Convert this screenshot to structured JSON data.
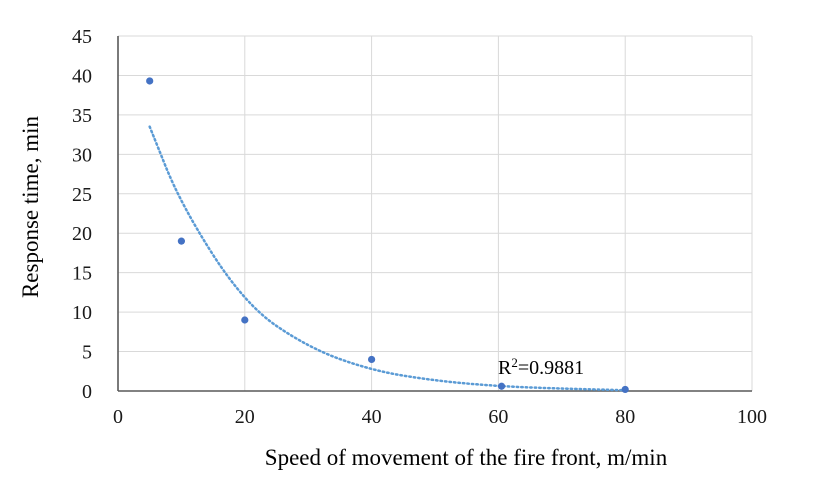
{
  "chart_data": {
    "type": "scatter",
    "xlabel": "Speed of movement of the fire front, m/min",
    "ylabel": "Response time, min",
    "xlim": [
      0,
      100
    ],
    "ylim": [
      0,
      45
    ],
    "x_ticks": [
      0,
      20,
      40,
      60,
      80,
      100
    ],
    "y_ticks": [
      0,
      5,
      10,
      15,
      20,
      25,
      30,
      35,
      40,
      45
    ],
    "grid": true,
    "points": [
      {
        "x": 5,
        "y": 39.3
      },
      {
        "x": 10,
        "y": 19.0
      },
      {
        "x": 20,
        "y": 9.0
      },
      {
        "x": 40,
        "y": 4.0
      },
      {
        "x": 60.5,
        "y": 0.6
      },
      {
        "x": 80,
        "y": 0.2
      }
    ],
    "trendline": {
      "type": "exponential",
      "style": "dotted",
      "x_range": [
        5,
        80
      ],
      "points": [
        {
          "x": 5,
          "y": 33.5
        },
        {
          "x": 10,
          "y": 23.5
        },
        {
          "x": 20,
          "y": 11.0
        },
        {
          "x": 30,
          "y": 5.5
        },
        {
          "x": 40,
          "y": 2.6
        },
        {
          "x": 50,
          "y": 1.3
        },
        {
          "x": 60,
          "y": 0.6
        },
        {
          "x": 70,
          "y": 0.3
        },
        {
          "x": 80,
          "y": 0.1
        }
      ]
    },
    "annotation": {
      "text_base": "R",
      "text_sup": "2",
      "text_rest": "=0.9881"
    },
    "colors": {
      "point": "#4472c4",
      "trendline": "#5b9bd5",
      "grid": "#d9d9d9",
      "axis": "#595959"
    }
  }
}
